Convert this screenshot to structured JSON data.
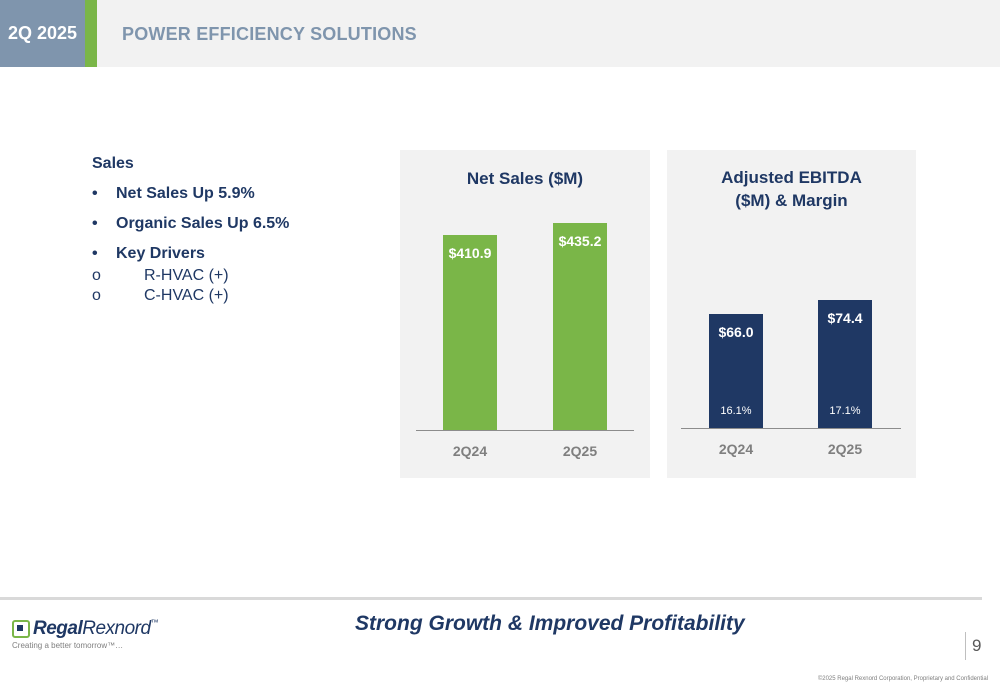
{
  "header": {
    "quarter": "2Q 2025",
    "title": "POWER EFFICIENCY SOLUTIONS"
  },
  "bullets": {
    "heading": "Sales",
    "items": [
      "Net Sales Up 5.9%",
      "Organic Sales Up 6.5%",
      "Key Drivers"
    ],
    "sub_marker": "o",
    "sub_items": [
      "R-HVAC (+)",
      "C-HVAC (+)"
    ]
  },
  "chart_data": [
    {
      "type": "bar",
      "title": "Net Sales ($M)",
      "categories": [
        "2Q24",
        "2Q25"
      ],
      "values": [
        410.9,
        435.2
      ],
      "value_labels": [
        "$410.9",
        "$435.2"
      ],
      "color": "#7ab648"
    },
    {
      "type": "bar",
      "title": "Adjusted EBITDA ($M) & Margin",
      "title_lines": [
        "Adjusted EBITDA",
        "($M) & Margin"
      ],
      "categories": [
        "2Q24",
        "2Q25"
      ],
      "values": [
        66.0,
        74.4
      ],
      "value_labels": [
        "$66.0",
        "$74.4"
      ],
      "margin_labels": [
        "16.1%",
        "17.1%"
      ],
      "color": "#1f3864"
    }
  ],
  "footer": {
    "tagline": "Strong Growth & Improved Profitability",
    "logo_regal": "Regal",
    "logo_rexnord": "Rexnord",
    "logo_tm": "™",
    "logo_tagline": "Creating a better tomorrow™…",
    "page_number": "9",
    "copyright": "©2025 Regal Rexnord Corporation, Proprietary and Confidential"
  }
}
